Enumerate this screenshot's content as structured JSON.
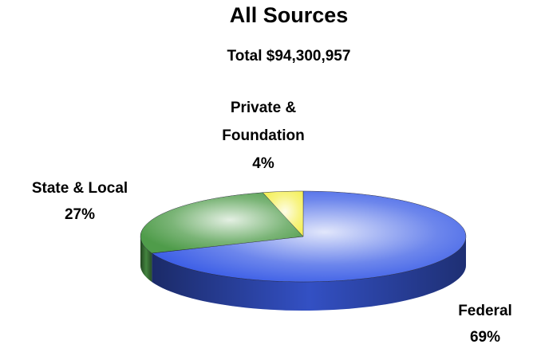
{
  "chart_data": {
    "type": "pie",
    "title": "All Sources",
    "subtitle": "Total $94,300,957",
    "categories": [
      "Federal",
      "State & Local",
      "Private & Foundation"
    ],
    "values": [
      69,
      27,
      4
    ],
    "value_labels": [
      "69%",
      "27%",
      "4%"
    ],
    "colors": [
      "#3c5ee6",
      "#4f9c4a",
      "#f5f05a"
    ]
  }
}
